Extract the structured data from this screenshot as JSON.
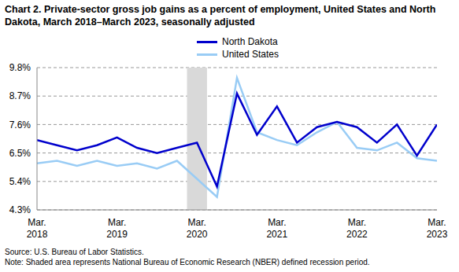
{
  "chart_data": {
    "type": "line",
    "title": "Chart 2. Private-sector gross job gains as a percent of employment, United States and North Dakota, March 2018–March 2023, seasonally adjusted",
    "categories": [
      "Mar. 2018",
      null,
      null,
      null,
      "Mar. 2019",
      null,
      null,
      null,
      "Mar. 2020",
      null,
      null,
      null,
      "Mar. 2021",
      null,
      null,
      null,
      "Mar. 2022",
      null,
      null,
      null,
      "Mar. 2023"
    ],
    "series": [
      {
        "name": "North Dakota",
        "color": "#0000cc",
        "values": [
          7.0,
          6.8,
          6.6,
          6.8,
          7.1,
          6.7,
          6.5,
          6.7,
          6.9,
          5.2,
          8.8,
          7.2,
          8.3,
          6.9,
          7.5,
          7.7,
          7.5,
          6.9,
          7.6,
          6.4,
          7.6
        ]
      },
      {
        "name": "United States",
        "color": "#99ccf5",
        "values": [
          6.1,
          6.2,
          6.0,
          6.2,
          6.0,
          6.1,
          5.9,
          6.2,
          5.5,
          4.8,
          9.4,
          7.3,
          7.0,
          6.8,
          7.3,
          7.7,
          6.7,
          6.6,
          6.9,
          6.3,
          6.2
        ]
      }
    ],
    "ylim": [
      4.3,
      9.8
    ],
    "yticks": [
      {
        "value": 4.3,
        "label": "4.3%"
      },
      {
        "value": 5.4,
        "label": "5.4%"
      },
      {
        "value": 6.5,
        "label": "6.5%"
      },
      {
        "value": 7.6,
        "label": "7.6%"
      },
      {
        "value": 8.7,
        "label": "8.7%"
      },
      {
        "value": 9.8,
        "label": "9.8%"
      }
    ],
    "grid": true,
    "legend": "top",
    "shaded_range": {
      "start": 7.5,
      "end": 8.5
    },
    "annotations": [
      "Source: U.S. Bureau of Labor Statistics.",
      "Note: Shaded area represents National Bureau of Economic Research (NBER) defined recession period."
    ]
  }
}
